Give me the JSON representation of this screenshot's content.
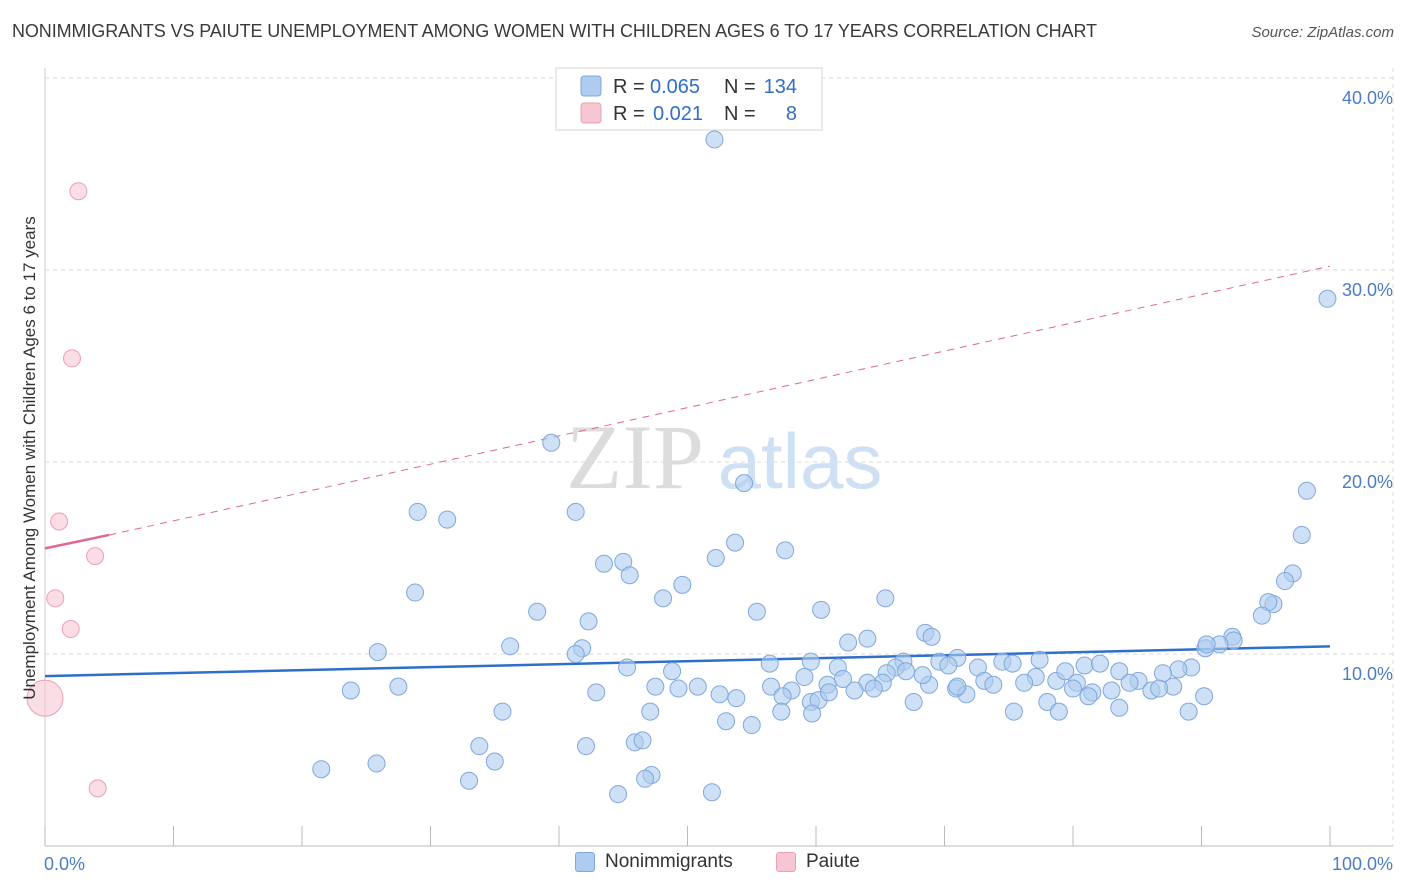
{
  "title": "NONIMMIGRANTS VS PAIUTE UNEMPLOYMENT AMONG WOMEN WITH CHILDREN AGES 6 TO 17 YEARS CORRELATION CHART",
  "source": "Source: ZipAtlas.com",
  "watermark": {
    "zip": "ZIP",
    "atlas": "atlas"
  },
  "legend": {
    "rows": [
      {
        "series": "Nonimmigrants",
        "r_label": "R =",
        "r_value": "0.065",
        "n_label": "N =",
        "n_value": "134"
      },
      {
        "series": "Paiute",
        "r_label": "R =",
        "r_value": "0.021",
        "n_label": "N =",
        "n_value": "8"
      }
    ]
  },
  "colors": {
    "blue_fill": "#aecbf0",
    "blue_stroke": "#7fa8dc",
    "blue_line": "#2f6fcc",
    "pink_fill": "#f7c6d3",
    "pink_stroke": "#ec9fb5",
    "pink_line": "#e06890",
    "grid": "#d9d9d9",
    "tick_text": "#4a7cc7",
    "value_text": "#2f6fcc"
  },
  "chart_data": {
    "type": "scatter",
    "title": "NONIMMIGRANTS VS PAIUTE UNEMPLOYMENT AMONG WOMEN WITH CHILDREN AGES 6 TO 17 YEARS CORRELATION CHART",
    "xlabel": "",
    "ylabel": "Unemployment Among Women with Children Ages 6 to 17 years",
    "xlim": [
      0,
      100
    ],
    "ylim": [
      0,
      40
    ],
    "x_tick_labels": [
      "0.0%",
      "100.0%"
    ],
    "y_ticks": [
      10,
      20,
      30,
      40
    ],
    "y_tick_labels": [
      "10.0%",
      "20.0%",
      "30.0%",
      "40.0%"
    ],
    "grid": true,
    "legend_position": "top-center",
    "series": [
      {
        "name": "Nonimmigrants",
        "trend": {
          "x": [
            0,
            100
          ],
          "y": [
            8.85,
            10.4
          ]
        },
        "points": [
          {
            "x": 52.1,
            "y": 36.8
          },
          {
            "x": 99.8,
            "y": 28.5
          },
          {
            "x": 39.4,
            "y": 21.0
          },
          {
            "x": 54.4,
            "y": 18.9
          },
          {
            "x": 98.2,
            "y": 18.5
          },
          {
            "x": 29.0,
            "y": 17.4
          },
          {
            "x": 31.3,
            "y": 17.0
          },
          {
            "x": 41.3,
            "y": 17.4
          },
          {
            "x": 97.8,
            "y": 16.2
          },
          {
            "x": 53.7,
            "y": 15.8
          },
          {
            "x": 57.6,
            "y": 15.4
          },
          {
            "x": 45.0,
            "y": 14.8
          },
          {
            "x": 52.2,
            "y": 15.0
          },
          {
            "x": 43.5,
            "y": 14.7
          },
          {
            "x": 45.5,
            "y": 14.1
          },
          {
            "x": 49.6,
            "y": 13.6
          },
          {
            "x": 97.1,
            "y": 14.2
          },
          {
            "x": 96.5,
            "y": 13.8
          },
          {
            "x": 48.1,
            "y": 12.9
          },
          {
            "x": 65.4,
            "y": 12.9
          },
          {
            "x": 28.8,
            "y": 13.2
          },
          {
            "x": 95.6,
            "y": 12.6
          },
          {
            "x": 95.2,
            "y": 12.7
          },
          {
            "x": 38.3,
            "y": 12.2
          },
          {
            "x": 55.4,
            "y": 12.2
          },
          {
            "x": 60.4,
            "y": 12.3
          },
          {
            "x": 42.3,
            "y": 11.7
          },
          {
            "x": 94.7,
            "y": 12.0
          },
          {
            "x": 68.5,
            "y": 11.1
          },
          {
            "x": 92.4,
            "y": 10.9
          },
          {
            "x": 64.0,
            "y": 10.8
          },
          {
            "x": 69.0,
            "y": 10.9
          },
          {
            "x": 62.5,
            "y": 10.6
          },
          {
            "x": 36.2,
            "y": 10.4
          },
          {
            "x": 41.8,
            "y": 10.3
          },
          {
            "x": 92.5,
            "y": 10.7
          },
          {
            "x": 91.4,
            "y": 10.5
          },
          {
            "x": 90.3,
            "y": 10.3
          },
          {
            "x": 90.4,
            "y": 10.5
          },
          {
            "x": 25.9,
            "y": 10.1
          },
          {
            "x": 41.3,
            "y": 10.0
          },
          {
            "x": 71.0,
            "y": 9.8
          },
          {
            "x": 66.8,
            "y": 9.6
          },
          {
            "x": 66.2,
            "y": 9.3
          },
          {
            "x": 56.4,
            "y": 9.5
          },
          {
            "x": 59.6,
            "y": 9.6
          },
          {
            "x": 61.7,
            "y": 9.3
          },
          {
            "x": 69.6,
            "y": 9.6
          },
          {
            "x": 74.5,
            "y": 9.6
          },
          {
            "x": 77.4,
            "y": 9.7
          },
          {
            "x": 80.9,
            "y": 9.4
          },
          {
            "x": 82.1,
            "y": 9.5
          },
          {
            "x": 89.2,
            "y": 9.3
          },
          {
            "x": 88.2,
            "y": 9.2
          },
          {
            "x": 83.6,
            "y": 9.1
          },
          {
            "x": 75.3,
            "y": 9.5
          },
          {
            "x": 70.3,
            "y": 9.4
          },
          {
            "x": 72.6,
            "y": 9.3
          },
          {
            "x": 62.1,
            "y": 8.7
          },
          {
            "x": 48.8,
            "y": 9.1
          },
          {
            "x": 67.0,
            "y": 9.1
          },
          {
            "x": 65.5,
            "y": 9.0
          },
          {
            "x": 59.1,
            "y": 8.8
          },
          {
            "x": 45.3,
            "y": 9.3
          },
          {
            "x": 77.1,
            "y": 8.8
          },
          {
            "x": 78.7,
            "y": 8.6
          },
          {
            "x": 79.4,
            "y": 9.1
          },
          {
            "x": 87.0,
            "y": 9.0
          },
          {
            "x": 85.1,
            "y": 8.6
          },
          {
            "x": 84.4,
            "y": 8.5
          },
          {
            "x": 87.8,
            "y": 8.3
          },
          {
            "x": 86.1,
            "y": 8.1
          },
          {
            "x": 80.3,
            "y": 8.5
          },
          {
            "x": 76.2,
            "y": 8.5
          },
          {
            "x": 73.1,
            "y": 8.6
          },
          {
            "x": 73.8,
            "y": 8.4
          },
          {
            "x": 68.8,
            "y": 8.4
          },
          {
            "x": 65.2,
            "y": 8.5
          },
          {
            "x": 64.0,
            "y": 8.5
          },
          {
            "x": 60.9,
            "y": 8.4
          },
          {
            "x": 56.5,
            "y": 8.3
          },
          {
            "x": 49.3,
            "y": 8.2
          },
          {
            "x": 50.8,
            "y": 8.3
          },
          {
            "x": 63.0,
            "y": 8.1
          },
          {
            "x": 58.1,
            "y": 8.1
          },
          {
            "x": 81.5,
            "y": 8.0
          },
          {
            "x": 70.9,
            "y": 8.2
          },
          {
            "x": 71.7,
            "y": 7.9
          },
          {
            "x": 90.2,
            "y": 7.8
          },
          {
            "x": 23.8,
            "y": 8.1
          },
          {
            "x": 27.5,
            "y": 8.3
          },
          {
            "x": 42.9,
            "y": 8.0
          },
          {
            "x": 47.5,
            "y": 8.3
          },
          {
            "x": 52.5,
            "y": 7.9
          },
          {
            "x": 53.8,
            "y": 7.7
          },
          {
            "x": 57.4,
            "y": 7.8
          },
          {
            "x": 59.6,
            "y": 7.5
          },
          {
            "x": 60.2,
            "y": 7.6
          },
          {
            "x": 78.0,
            "y": 7.5
          },
          {
            "x": 67.6,
            "y": 7.5
          },
          {
            "x": 75.4,
            "y": 7.0
          },
          {
            "x": 89.0,
            "y": 7.0
          },
          {
            "x": 83.6,
            "y": 7.2
          },
          {
            "x": 78.9,
            "y": 7.0
          },
          {
            "x": 57.3,
            "y": 7.0
          },
          {
            "x": 59.7,
            "y": 6.9
          },
          {
            "x": 47.1,
            "y": 7.0
          },
          {
            "x": 35.6,
            "y": 7.0
          },
          {
            "x": 53.0,
            "y": 6.5
          },
          {
            "x": 55.0,
            "y": 6.3
          },
          {
            "x": 45.9,
            "y": 5.4
          },
          {
            "x": 46.5,
            "y": 5.5
          },
          {
            "x": 42.1,
            "y": 5.2
          },
          {
            "x": 33.8,
            "y": 5.2
          },
          {
            "x": 35.0,
            "y": 4.4
          },
          {
            "x": 25.8,
            "y": 4.3
          },
          {
            "x": 21.5,
            "y": 4.0
          },
          {
            "x": 47.2,
            "y": 3.7
          },
          {
            "x": 46.7,
            "y": 3.5
          },
          {
            "x": 33.0,
            "y": 3.4
          },
          {
            "x": 44.6,
            "y": 2.7
          },
          {
            "x": 51.9,
            "y": 2.8
          },
          {
            "x": 83.0,
            "y": 8.1
          },
          {
            "x": 86.7,
            "y": 8.2
          },
          {
            "x": 71.0,
            "y": 8.3
          },
          {
            "x": 68.3,
            "y": 8.9
          },
          {
            "x": 61.0,
            "y": 8.0
          },
          {
            "x": 80.0,
            "y": 8.2
          },
          {
            "x": 81.2,
            "y": 7.8
          },
          {
            "x": 64.5,
            "y": 8.2
          }
        ]
      },
      {
        "name": "Paiute",
        "trend": {
          "solid": {
            "x": [
              0,
              5
            ],
            "y": [
              15.5,
              16.2
            ]
          },
          "dashed": {
            "x": [
              5,
              100
            ],
            "y": [
              16.2,
              30.2
            ]
          }
        },
        "points": [
          {
            "x": 2.6,
            "y": 34.1
          },
          {
            "x": 2.1,
            "y": 25.4
          },
          {
            "x": 1.1,
            "y": 16.9
          },
          {
            "x": 3.9,
            "y": 15.1
          },
          {
            "x": 0.8,
            "y": 12.9
          },
          {
            "x": 2.0,
            "y": 11.3
          },
          {
            "x": 0.0,
            "y": 7.7
          },
          {
            "x": 4.1,
            "y": 3.0
          }
        ]
      }
    ]
  }
}
